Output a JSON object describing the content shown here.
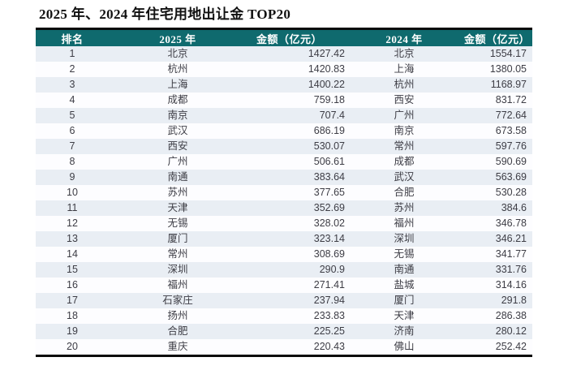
{
  "title": "2025 年、2024 年住宅用地出让金 TOP20",
  "colors": {
    "header_bg": "#0f6a6e",
    "header_text": "#ffffff",
    "border_color": "#0a0a0a",
    "row_odd_bg": "#e9eef4",
    "row_even_bg": "#fdfdff",
    "cell_text": "#3d3d45"
  },
  "table": {
    "headers": [
      "排名",
      "2025 年",
      "金额（亿元）",
      "2024 年",
      "金额（亿元）"
    ],
    "rows": [
      {
        "rank": "1",
        "city_2025": "北京",
        "amount_2025": "1427.42",
        "city_2024": "北京",
        "amount_2024": "1554.17"
      },
      {
        "rank": "2",
        "city_2025": "杭州",
        "amount_2025": "1420.83",
        "city_2024": "上海",
        "amount_2024": "1380.05"
      },
      {
        "rank": "3",
        "city_2025": "上海",
        "amount_2025": "1400.22",
        "city_2024": "杭州",
        "amount_2024": "1168.97"
      },
      {
        "rank": "4",
        "city_2025": "成都",
        "amount_2025": "759.18",
        "city_2024": "西安",
        "amount_2024": "831.72"
      },
      {
        "rank": "5",
        "city_2025": "南京",
        "amount_2025": "707.4",
        "city_2024": "广州",
        "amount_2024": "772.64"
      },
      {
        "rank": "6",
        "city_2025": "武汉",
        "amount_2025": "686.19",
        "city_2024": "南京",
        "amount_2024": "673.58"
      },
      {
        "rank": "7",
        "city_2025": "西安",
        "amount_2025": "530.07",
        "city_2024": "常州",
        "amount_2024": "597.76"
      },
      {
        "rank": "8",
        "city_2025": "广州",
        "amount_2025": "506.61",
        "city_2024": "成都",
        "amount_2024": "590.69"
      },
      {
        "rank": "9",
        "city_2025": "南通",
        "amount_2025": "383.64",
        "city_2024": "武汉",
        "amount_2024": "563.69"
      },
      {
        "rank": "10",
        "city_2025": "苏州",
        "amount_2025": "377.65",
        "city_2024": "合肥",
        "amount_2024": "530.28"
      },
      {
        "rank": "11",
        "city_2025": "天津",
        "amount_2025": "352.69",
        "city_2024": "苏州",
        "amount_2024": "384.6"
      },
      {
        "rank": "12",
        "city_2025": "无锡",
        "amount_2025": "328.02",
        "city_2024": "福州",
        "amount_2024": "346.78"
      },
      {
        "rank": "13",
        "city_2025": "厦门",
        "amount_2025": "323.14",
        "city_2024": "深圳",
        "amount_2024": "346.21"
      },
      {
        "rank": "14",
        "city_2025": "常州",
        "amount_2025": "308.69",
        "city_2024": "无锡",
        "amount_2024": "341.77"
      },
      {
        "rank": "15",
        "city_2025": "深圳",
        "amount_2025": "290.9",
        "city_2024": "南通",
        "amount_2024": "331.76"
      },
      {
        "rank": "16",
        "city_2025": "福州",
        "amount_2025": "271.41",
        "city_2024": "盐城",
        "amount_2024": "314.16"
      },
      {
        "rank": "17",
        "city_2025": "石家庄",
        "amount_2025": "237.94",
        "city_2024": "厦门",
        "amount_2024": "291.8"
      },
      {
        "rank": "18",
        "city_2025": "扬州",
        "amount_2025": "233.83",
        "city_2024": "天津",
        "amount_2024": "286.38"
      },
      {
        "rank": "19",
        "city_2025": "合肥",
        "amount_2025": "225.25",
        "city_2024": "济南",
        "amount_2024": "280.12"
      },
      {
        "rank": "20",
        "city_2025": "重庆",
        "amount_2025": "220.43",
        "city_2024": "佛山",
        "amount_2024": "252.42"
      }
    ]
  }
}
